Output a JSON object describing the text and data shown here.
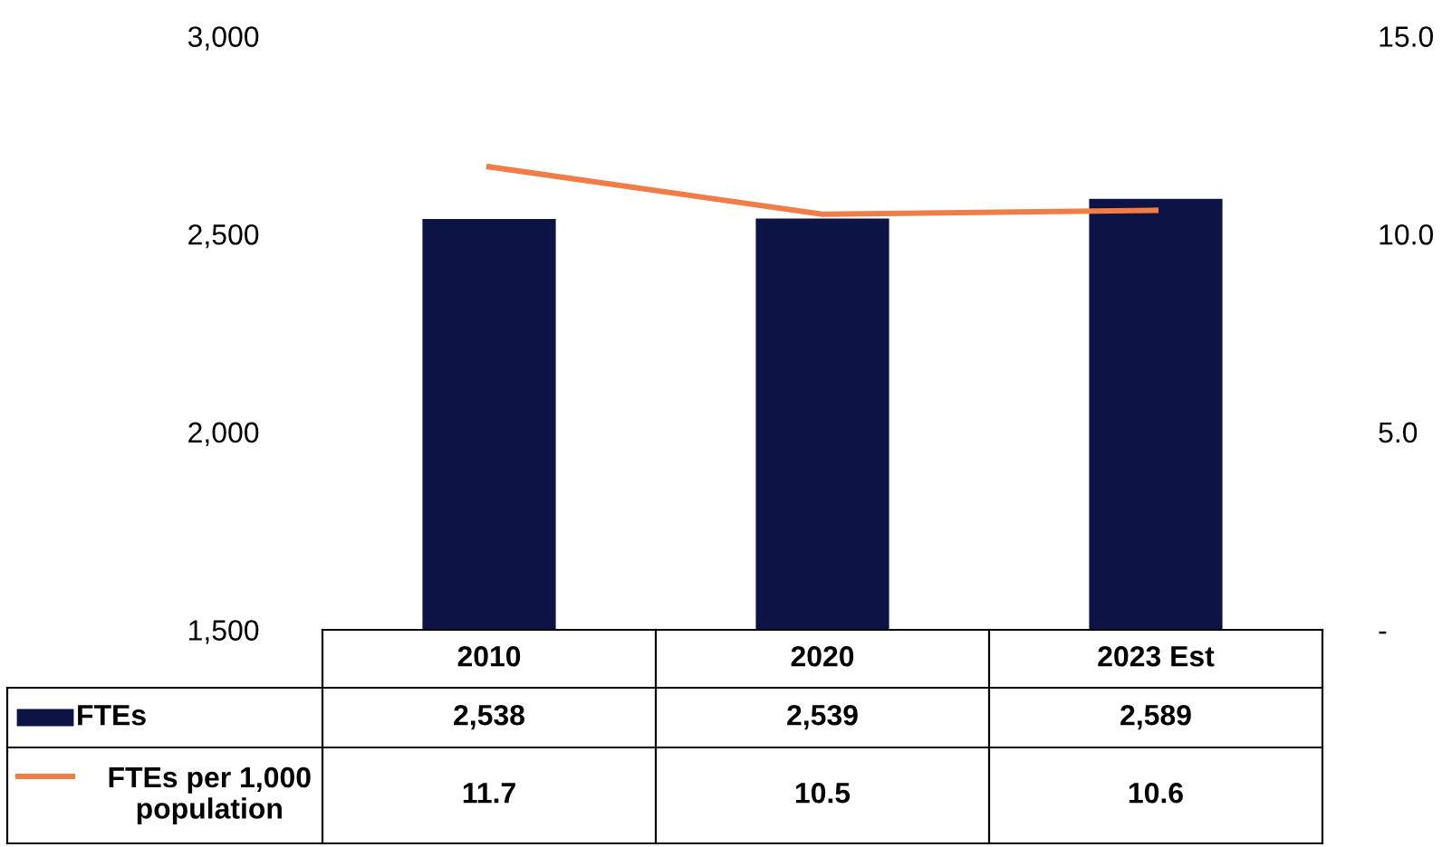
{
  "chart_data": {
    "type": "bar",
    "categories": [
      "2010",
      "2020",
      "2023 Est"
    ],
    "series": [
      {
        "name": "FTEs",
        "color": "#0c1445",
        "values": [
          2538,
          2539,
          2589
        ],
        "value_labels": [
          "2,538",
          "2,539",
          "2,589"
        ]
      },
      {
        "name": "FTEs per 1,000 population",
        "type": "line",
        "axis": "y2",
        "color": "#f07d47",
        "values": [
          11.7,
          10.5,
          10.6
        ],
        "value_labels": [
          "11.7",
          "10.5",
          "10.6"
        ]
      }
    ],
    "ylim": [
      1500,
      3000
    ],
    "yticks": [
      {
        "value": 1500,
        "label": "1,500"
      },
      {
        "value": 2000,
        "label": "2,000"
      },
      {
        "value": 2500,
        "label": "2,500"
      },
      {
        "value": 3000,
        "label": "3,000"
      }
    ],
    "y2lim": [
      0,
      15
    ],
    "y2ticks": [
      {
        "value": 0,
        "label": "-"
      },
      {
        "value": 5,
        "label": "5.0"
      },
      {
        "value": 10,
        "label": "10.0"
      },
      {
        "value": 15,
        "label": "15.0"
      }
    ],
    "legend": "bottom left"
  }
}
